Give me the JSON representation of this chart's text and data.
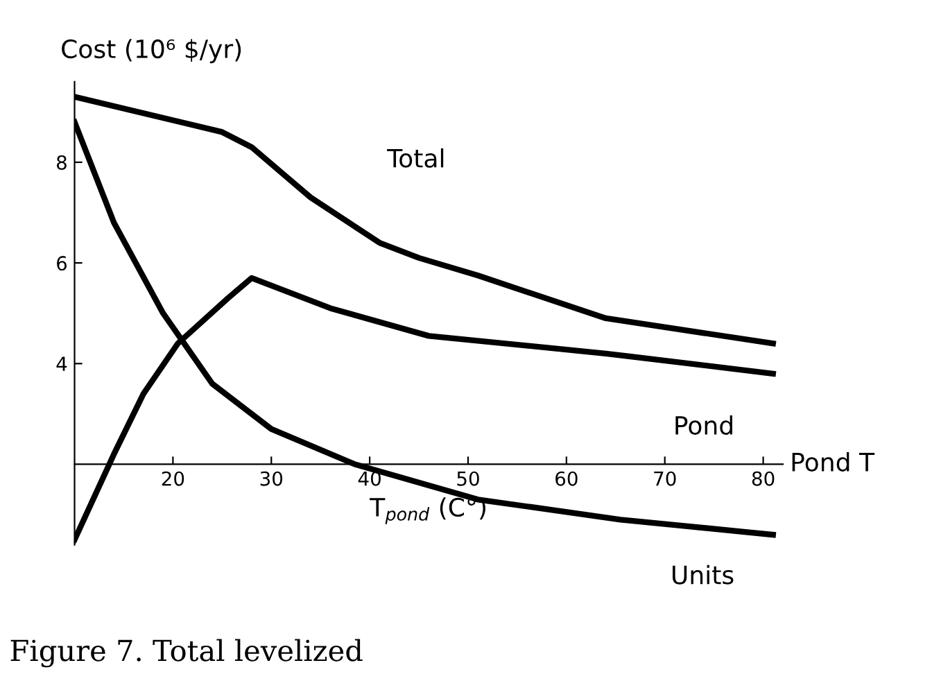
{
  "chart_data": {
    "type": "line",
    "ylabel": "Cost (10⁶ $/yr)",
    "xlabel": "T$_{pond}$ (C°)",
    "annotations": [
      "Pond T",
      "Figure 7. Total levelized"
    ],
    "xlim": [
      10,
      82
    ],
    "ylim": [
      0.4,
      9.6
    ],
    "xticks": [
      20,
      30,
      40,
      50,
      60,
      70,
      80
    ],
    "yticks": [
      4,
      6,
      8
    ],
    "grid": false,
    "legend": false,
    "marker": "none",
    "line_style": "solid",
    "series": [
      {
        "name": "Total",
        "color": "#000000",
        "x": [
          10,
          25,
          28,
          34,
          41,
          45,
          51,
          64,
          81
        ],
        "values": [
          9.3,
          8.6,
          8.3,
          7.3,
          6.4,
          6.1,
          5.75,
          4.9,
          4.4
        ]
      },
      {
        "name": "Pond",
        "color": "#000000",
        "x": [
          10,
          14,
          17,
          20.5,
          25.6,
          28,
          36,
          46,
          64,
          81
        ],
        "values": [
          0.5,
          2.2,
          3.4,
          4.4,
          5.3,
          5.7,
          5.1,
          4.55,
          4.2,
          3.8
        ]
      },
      {
        "name": "Units",
        "color": "#000000",
        "x": [
          10,
          14,
          19,
          24,
          30,
          38.5,
          51,
          65.5,
          81
        ],
        "values": [
          8.8,
          6.8,
          5.0,
          3.6,
          2.7,
          2.0,
          1.3,
          0.9,
          0.6
        ]
      }
    ]
  }
}
